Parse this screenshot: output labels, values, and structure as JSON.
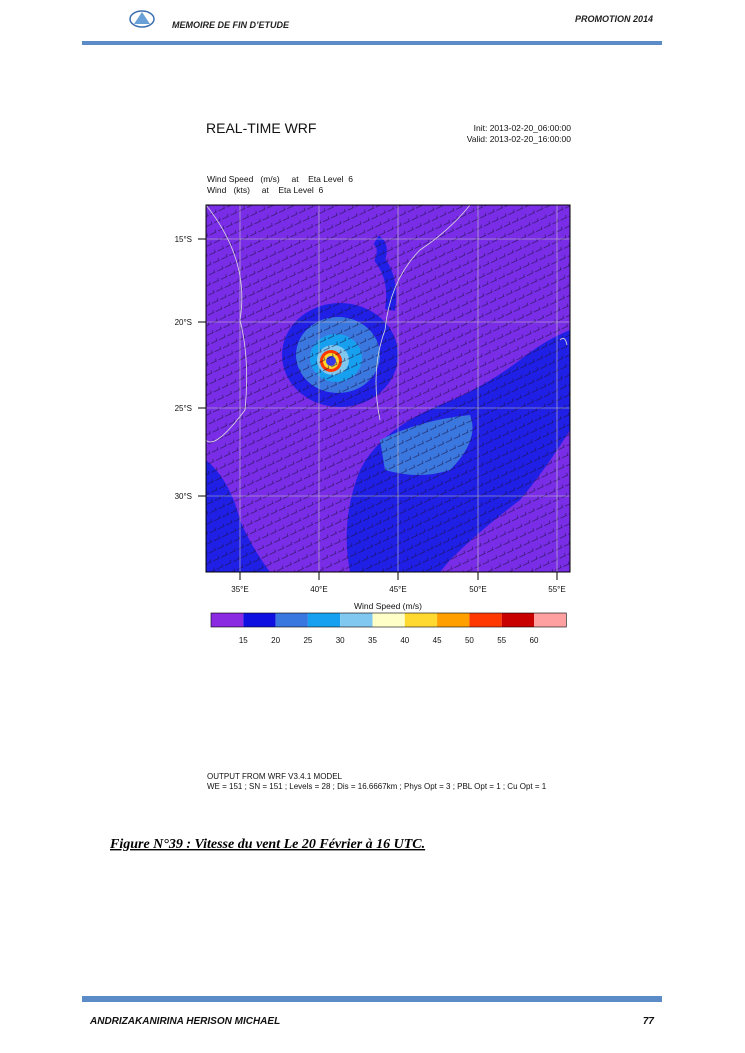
{
  "header": {
    "left": "MEMOIRE DE FIN D’ETUDE",
    "right": "PROMOTION 2014"
  },
  "figure": {
    "title": "REAL-TIME WRF",
    "init": "Init: 2013-02-20_06:00:00",
    "valid": "Valid: 2013-02-20_16:00:00",
    "field_1": "Wind Speed   (m/s)     at    Eta Level  6",
    "field_2": "Wind   (kts)     at    Eta Level  6",
    "lat_labels": [
      "15°S",
      "20°S",
      "25°S",
      "30°S"
    ],
    "lon_labels": [
      "35°E",
      "40°E",
      "45°E",
      "50°E",
      "55°E"
    ],
    "colorbar_label": "Wind Speed  (m/s)",
    "colorbar_ticks": [
      "15",
      "20",
      "25",
      "30",
      "35",
      "40",
      "45",
      "50",
      "55",
      "60"
    ],
    "output_1": "OUTPUT FROM WRF V3.4.1 MODEL",
    "output_2": "WE = 151 ; SN = 151 ; Levels = 28 ; Dis = 16.6667km ; Phys Opt = 3 ; PBL Opt = 1 ; Cu Opt = 1"
  },
  "caption": "Figure N°39 : Vitesse du vent Le 20 Février à 16 UTC.",
  "footer": {
    "author": "ANDRIZAKANIRINA HERISON MICHAEL",
    "page": "77"
  }
}
